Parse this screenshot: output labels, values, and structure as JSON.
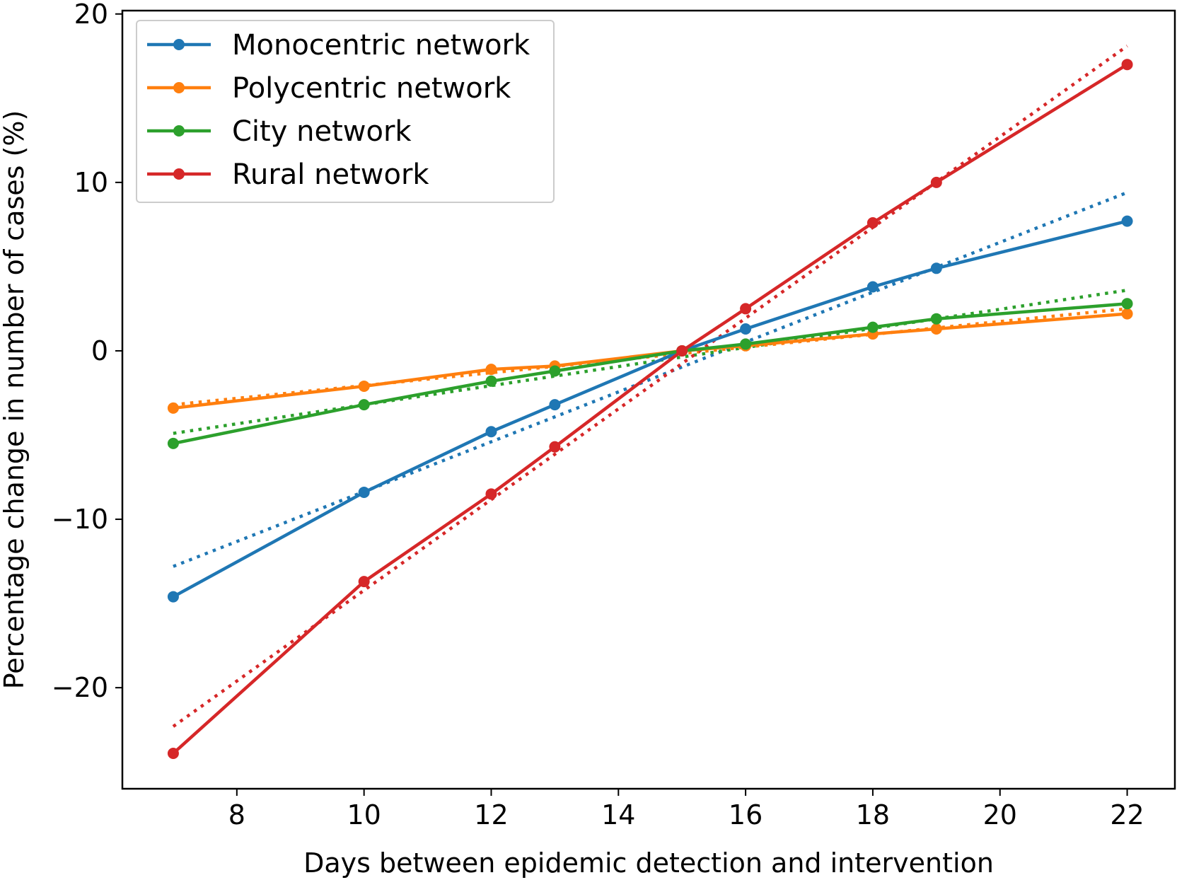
{
  "chart_data": {
    "type": "line",
    "title": "",
    "xlabel": "Days between epidemic detection and intervention",
    "ylabel": "Percentage change in number of cases (%)",
    "x": [
      7,
      10,
      12,
      13,
      15,
      16,
      18,
      19,
      22
    ],
    "xlim": [
      6.2,
      22.75
    ],
    "ylim": [
      -26.0,
      20.2
    ],
    "xticks": [
      8,
      10,
      12,
      14,
      16,
      18,
      20,
      22
    ],
    "yticks": [
      -20,
      -10,
      0,
      10,
      20
    ],
    "ytick_labels": [
      "−20",
      "−10",
      "0",
      "10",
      "20"
    ],
    "grid": false,
    "legend_position": "top-left",
    "series": [
      {
        "name": "Monocentric network",
        "color": "#1f77b4",
        "values": [
          -14.6,
          -8.4,
          -4.8,
          -3.2,
          0.0,
          1.3,
          3.8,
          4.9,
          7.7
        ],
        "trend": [
          -12.8,
          9.4
        ]
      },
      {
        "name": "Polycentric network",
        "color": "#ff7f0e",
        "values": [
          -3.4,
          -2.1,
          -1.1,
          -0.9,
          0.0,
          0.3,
          1.0,
          1.3,
          2.2
        ],
        "trend": [
          -3.2,
          2.5
        ]
      },
      {
        "name": "City network",
        "color": "#2ca02c",
        "values": [
          -5.5,
          -3.2,
          -1.8,
          -1.2,
          0.0,
          0.4,
          1.4,
          1.9,
          2.8
        ],
        "trend": [
          -4.9,
          3.6
        ]
      },
      {
        "name": "Rural network",
        "color": "#d62728",
        "values": [
          -23.9,
          -13.7,
          -8.5,
          -5.7,
          0.0,
          2.5,
          7.6,
          10.0,
          17.0
        ],
        "trend": [
          -22.3,
          18.1
        ]
      }
    ]
  }
}
